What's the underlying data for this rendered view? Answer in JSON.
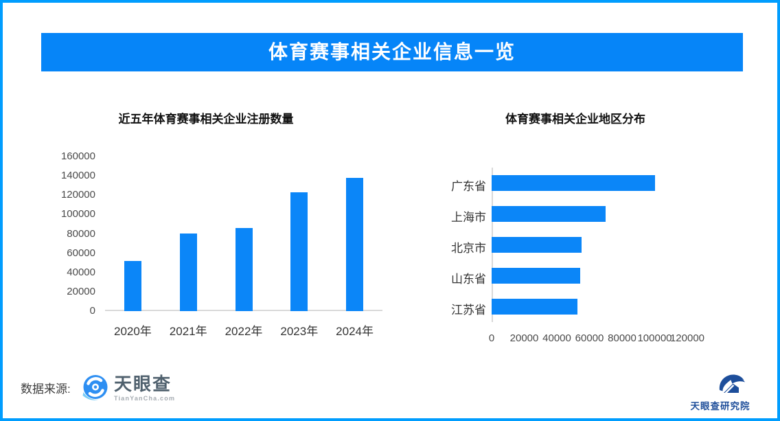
{
  "colors": {
    "accent": "#0685f8",
    "border": "#009dfe",
    "bar": "#0b86f8",
    "axis": "#d9d9d9",
    "tick_text": "#4a4a4a",
    "label_text": "#333333",
    "title_text": "#111111"
  },
  "header": {
    "title": "体育赛事相关企业信息一览"
  },
  "chart_data": [
    {
      "type": "bar",
      "orientation": "vertical",
      "title": "近五年体育赛事相关企业注册数量",
      "categories": [
        "2020年",
        "2021年",
        "2022年",
        "2023年",
        "2024年"
      ],
      "values": [
        52000,
        80000,
        86000,
        123000,
        138000
      ],
      "xlabel": "",
      "ylabel": "",
      "ylim": [
        0,
        160000
      ],
      "yticks": [
        0,
        20000,
        40000,
        60000,
        80000,
        100000,
        120000,
        140000,
        160000
      ],
      "grid": false,
      "legend": false,
      "bar_color": "#0b86f8"
    },
    {
      "type": "bar",
      "orientation": "horizontal",
      "title": "体育赛事相关企业地区分布",
      "categories": [
        "广东省",
        "上海市",
        "北京市",
        "山东省",
        "江苏省"
      ],
      "values": [
        100000,
        70000,
        55000,
        54500,
        52500
      ],
      "xlabel": "",
      "ylabel": "",
      "xlim": [
        0,
        120000
      ],
      "xticks": [
        0,
        20000,
        40000,
        60000,
        80000,
        100000,
        120000
      ],
      "grid": false,
      "legend": false,
      "bar_color": "#0b86f8"
    }
  ],
  "footer": {
    "source_label": "数据来源:",
    "tianyancha": {
      "name": "天眼查",
      "domain": "TianYanCha.com"
    },
    "institute": {
      "name": "天眼查研究院"
    }
  }
}
